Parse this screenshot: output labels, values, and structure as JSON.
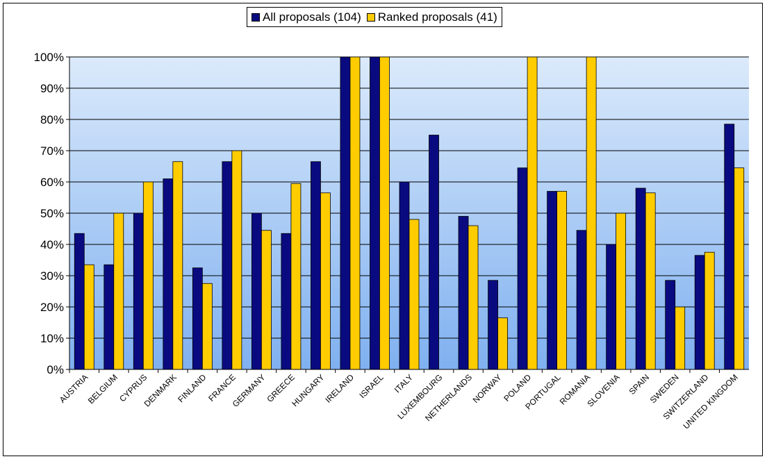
{
  "chart_data": {
    "type": "bar",
    "categories": [
      "AUSTRIA",
      "BELGIUM",
      "CYPRUS",
      "DENMARK",
      "FINLAND",
      "FRANCE",
      "GERMANY",
      "GREECE",
      "HUNGARY",
      "IRELAND",
      "ISRAEL",
      "ITALY",
      "LUXEMBOURG",
      "NETHERLANDS",
      "NORWAY",
      "POLAND",
      "PORTUGAL",
      "ROMANIA",
      "SLOVENIA",
      "SPAIN",
      "SWEDEN",
      "SWITZERLAND",
      "UNITED KINGDOM"
    ],
    "series": [
      {
        "name": "All proposals (104)",
        "color": "#0a0a80",
        "values": [
          43.5,
          33.5,
          50,
          61,
          32.5,
          66.5,
          50,
          43.5,
          66.5,
          100,
          100,
          60,
          75,
          49,
          28.5,
          64.5,
          57,
          44.5,
          40,
          58,
          28.5,
          36.5,
          78.5
        ]
      },
      {
        "name": "Ranked proposals (41)",
        "color": "#ffcc00",
        "values": [
          33.5,
          50,
          60,
          66.5,
          27.5,
          70,
          44.5,
          59.5,
          56.5,
          100,
          100,
          48,
          0,
          46,
          16.5,
          100,
          57,
          100,
          50,
          56.5,
          20,
          37.5,
          64.5
        ]
      }
    ],
    "y_ticks": [
      "0%",
      "10%",
      "20%",
      "30%",
      "40%",
      "50%",
      "60%",
      "70%",
      "80%",
      "90%",
      "100%"
    ],
    "ylim": [
      0,
      100
    ],
    "grid": true,
    "legend_position": "top-center",
    "title": "",
    "xlabel": "",
    "ylabel": ""
  }
}
